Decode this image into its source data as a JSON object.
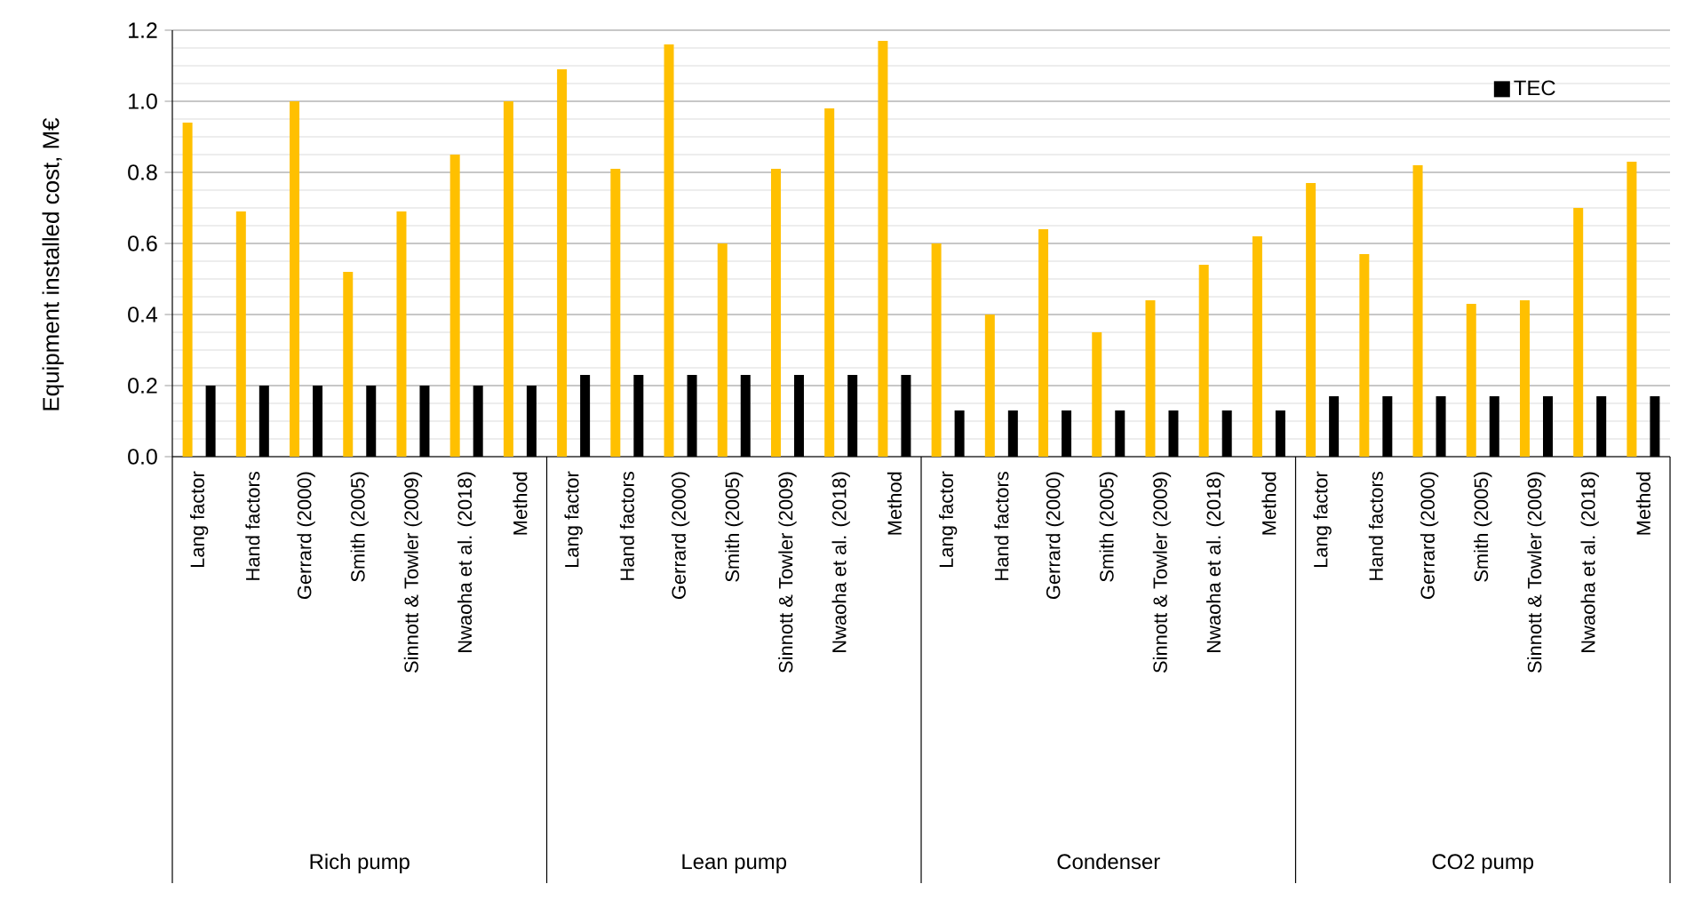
{
  "chart_data": {
    "type": "bar",
    "ylabel": "Equipment installed cost, M€",
    "categories": [
      "Lang factor",
      "Hand factors",
      "Gerrard (2000)",
      "Smith (2005)",
      "Sinnott & Towler (2009)",
      "Nwaoha et al. (2018)",
      "Method",
      "Lang factor",
      "Hand factors",
      "Gerrard (2000)",
      "Smith (2005)",
      "Sinnott & Towler (2009)",
      "Nwaoha et al. (2018)",
      "Method",
      "Lang factor",
      "Hand factors",
      "Gerrard (2000)",
      "Smith (2005)",
      "Sinnott & Towler (2009)",
      "Nwaoha et al. (2018)",
      "Method",
      "Lang factor",
      "Hand factors",
      "Gerrard (2000)",
      "Smith (2005)",
      "Sinnott & Towler (2009)",
      "Nwaoha et al. (2018)",
      "Method"
    ],
    "series": [
      {
        "color": "#ffc000",
        "values": [
          0.94,
          0.69,
          1.0,
          0.52,
          0.69,
          0.85,
          1.0,
          1.09,
          0.81,
          1.16,
          0.6,
          0.81,
          0.98,
          1.17,
          0.6,
          0.4,
          0.64,
          0.35,
          0.44,
          0.54,
          0.62,
          0.77,
          0.57,
          0.82,
          0.43,
          0.44,
          0.7,
          0.83
        ]
      },
      {
        "name": "TEC",
        "color": "#000000",
        "values": [
          0.2,
          0.2,
          0.2,
          0.2,
          0.2,
          0.2,
          0.2,
          0.23,
          0.23,
          0.23,
          0.23,
          0.23,
          0.23,
          0.23,
          0.13,
          0.13,
          0.13,
          0.13,
          0.13,
          0.13,
          0.13,
          0.17,
          0.17,
          0.17,
          0.17,
          0.17,
          0.17,
          0.17
        ]
      }
    ],
    "annotations": [
      "Rich pump",
      "Lean pump",
      "Condenser",
      "CO2 pump"
    ],
    "ylim": [
      0,
      1.2
    ],
    "yticks": [
      {
        "value": 0,
        "label": "0.0"
      },
      {
        "value": 0.2,
        "label": "0.2"
      },
      {
        "value": 0.4,
        "label": "0.4"
      },
      {
        "value": 0.6,
        "label": "0.6"
      },
      {
        "value": 0.8,
        "label": "0.8"
      },
      {
        "value": 1.0,
        "label": "1.0"
      },
      {
        "value": 1.2,
        "label": "1.2"
      }
    ],
    "grid": "y",
    "legend": "top right"
  }
}
